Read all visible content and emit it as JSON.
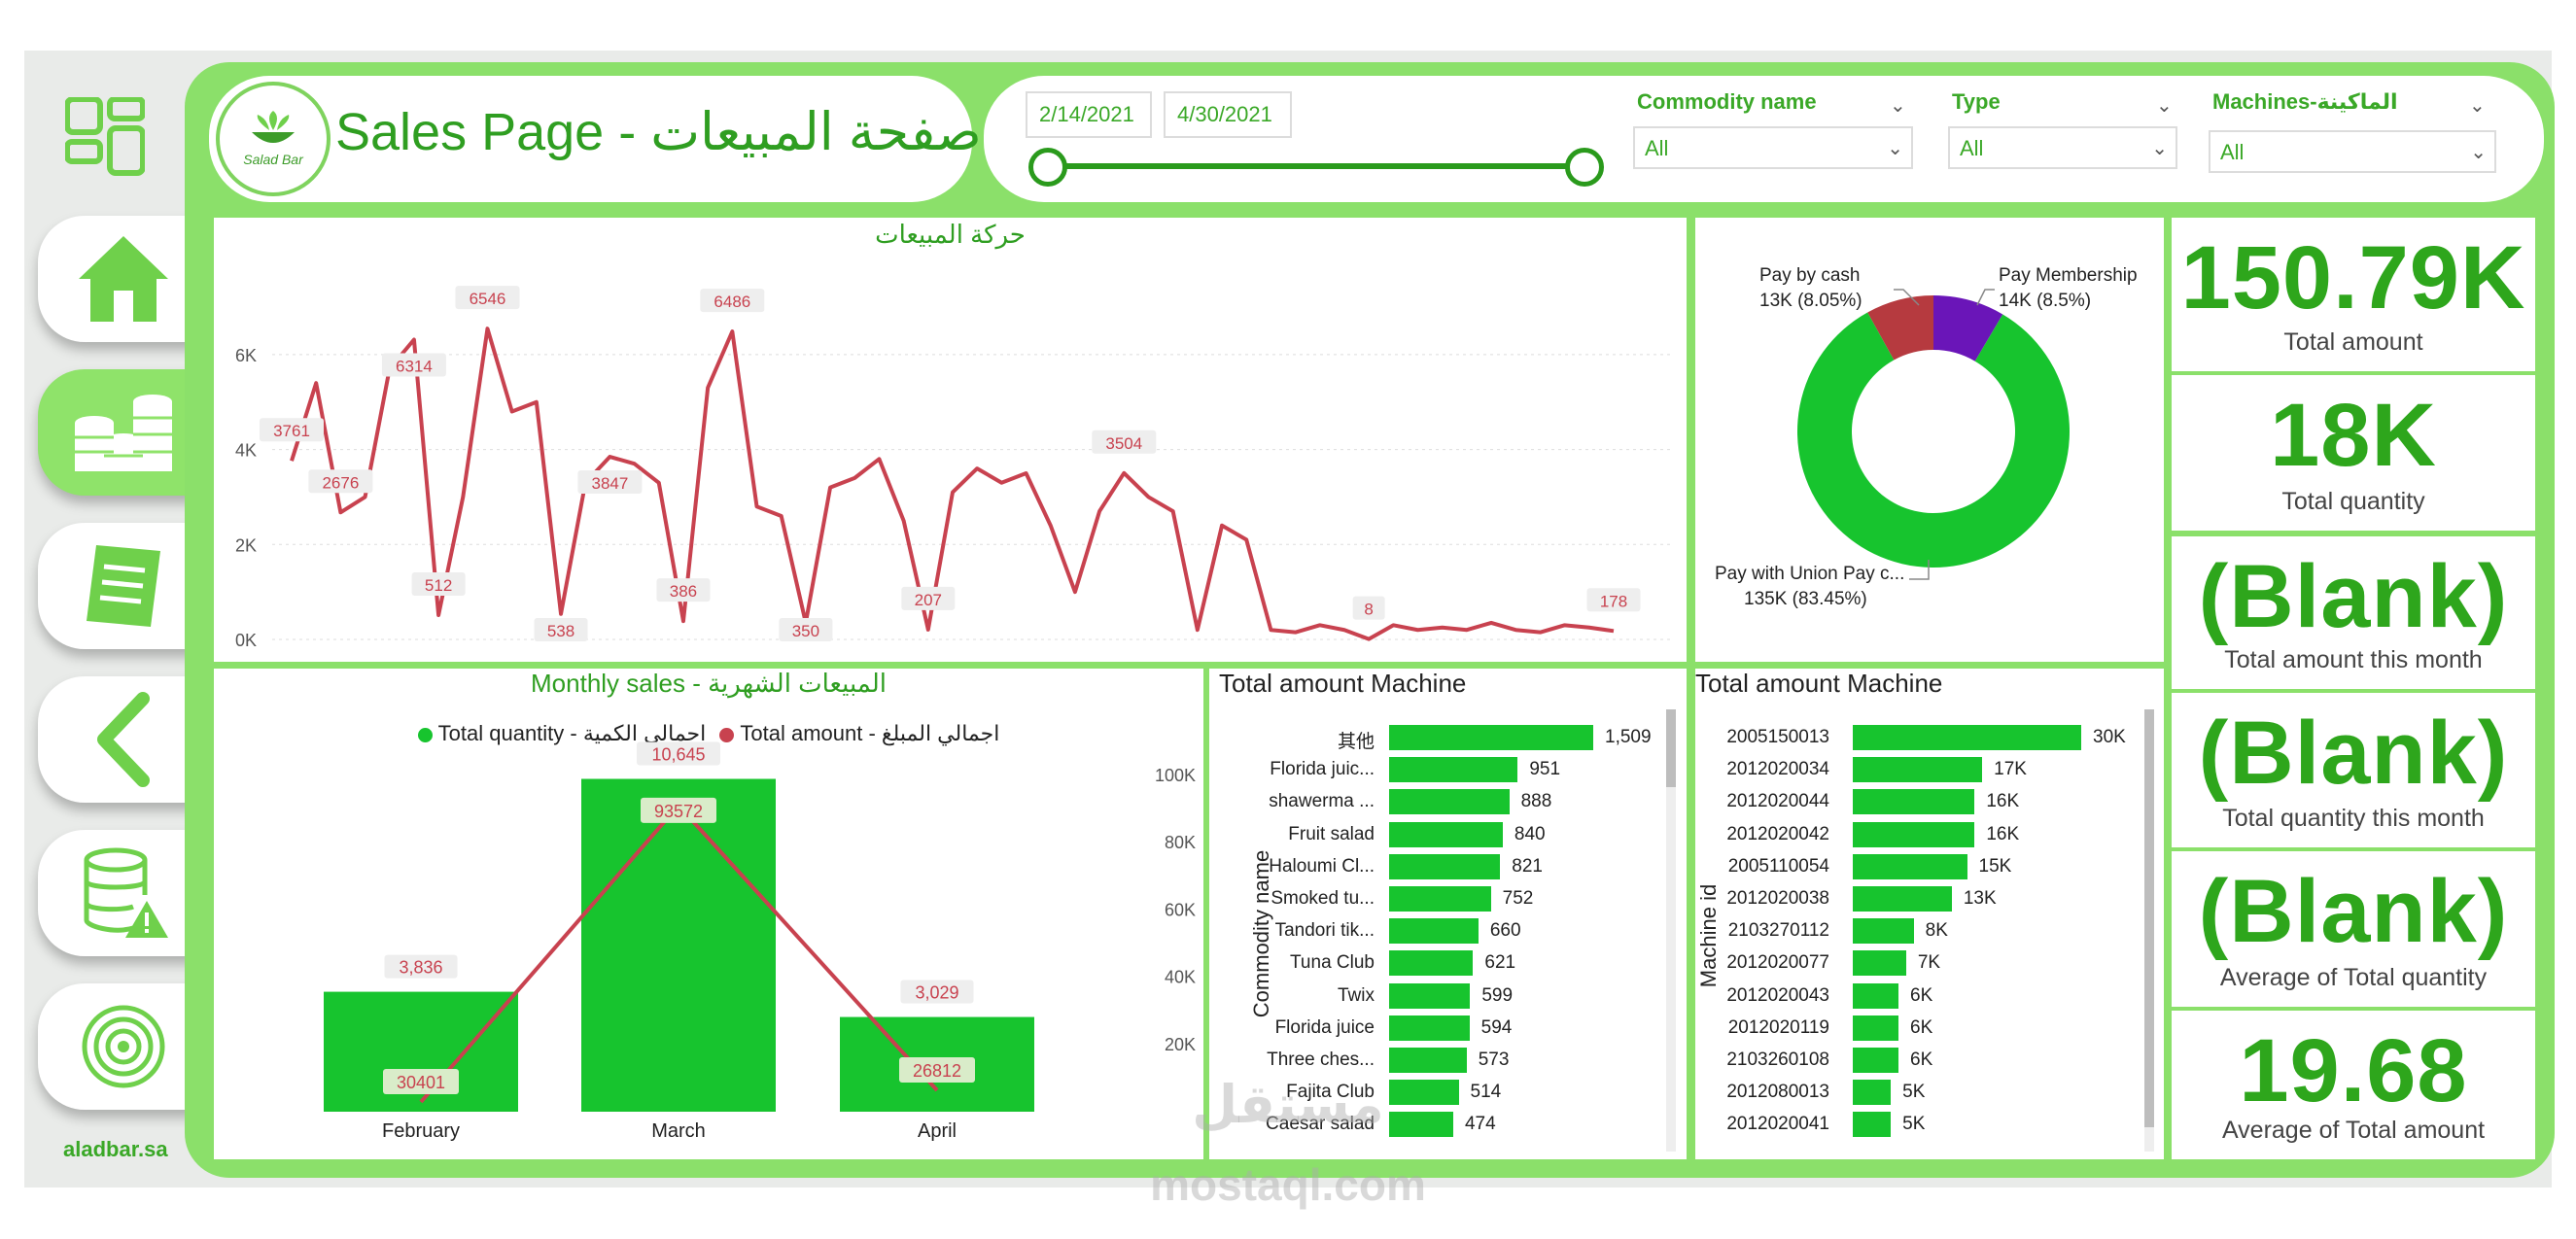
{
  "colors": {
    "accent": "#2ea61c",
    "panel_green": "#8be06a",
    "bar_green": "#17c42e",
    "line_red": "#c8424f",
    "pie_red": "#b63a3f",
    "pie_purple": "#6a15b8"
  },
  "sidebar": {
    "items": [
      {
        "name": "dashboard-grid-icon"
      },
      {
        "name": "home-icon"
      },
      {
        "name": "coins-stack-icon"
      },
      {
        "name": "invoice-icon"
      },
      {
        "name": "back-arrow-icon"
      },
      {
        "name": "database-warning-icon"
      },
      {
        "name": "target-icon"
      }
    ],
    "brand": "aladbar.sa"
  },
  "header": {
    "logo_text": "Salad Bar",
    "title": "Sales Page - صفحة المبيعات"
  },
  "filters": {
    "date_start": "2/14/2021",
    "date_end": "4/30/2021",
    "commodity": {
      "label": "Commodity name",
      "value": "All"
    },
    "type": {
      "label": "Type",
      "value": "All"
    },
    "machines": {
      "label": "Machines-الماكينة",
      "value": "All"
    }
  },
  "sales_movement": {
    "title": "حركة المبيعات",
    "chart_data": {
      "type": "line",
      "yticks": [
        "6K",
        "4K",
        "2K",
        "0K"
      ],
      "ylim": [
        0,
        7000
      ],
      "values": [
        3761,
        5400,
        2676,
        3000,
        5700,
        6314,
        512,
        3000,
        6546,
        4800,
        5000,
        538,
        3300,
        3847,
        3700,
        3300,
        386,
        5300,
        6486,
        2800,
        2600,
        350,
        3200,
        3400,
        3800,
        2500,
        207,
        3100,
        3600,
        3300,
        3500,
        2400,
        1000,
        2700,
        3504,
        3000,
        2700,
        200,
        2400,
        2100,
        200,
        150,
        300,
        200,
        8,
        300,
        200,
        250,
        200,
        350,
        200,
        150,
        300,
        250,
        178
      ],
      "data_labels": [
        {
          "i": 0,
          "v": "3761"
        },
        {
          "i": 2,
          "v": "2676"
        },
        {
          "i": 5,
          "v": "6314"
        },
        {
          "i": 6,
          "v": "512"
        },
        {
          "i": 8,
          "v": "6546"
        },
        {
          "i": 11,
          "v": "538"
        },
        {
          "i": 13,
          "v": "3847"
        },
        {
          "i": 16,
          "v": "386"
        },
        {
          "i": 18,
          "v": "6486"
        },
        {
          "i": 21,
          "v": "350"
        },
        {
          "i": 26,
          "v": "207"
        },
        {
          "i": 34,
          "v": "3504"
        },
        {
          "i": 44,
          "v": "8"
        },
        {
          "i": 54,
          "v": "178"
        }
      ]
    }
  },
  "payment": {
    "chart_data": {
      "type": "pie",
      "slices": [
        {
          "label": "Pay with Union Pay c...",
          "value_text": "135K (83.45%)",
          "value": 83.45,
          "color": "#17c42e"
        },
        {
          "label": "Pay by cash",
          "value_text": "13K (8.05%)",
          "value": 8.05,
          "color": "#b63a3f"
        },
        {
          "label": "Pay Membership",
          "value_text": "14K (8.5%)",
          "value": 8.5,
          "color": "#6a15b8"
        }
      ]
    }
  },
  "kpis": [
    {
      "value": "150.79K",
      "label": "Total amount"
    },
    {
      "value": "18K",
      "label": "Total quantity"
    },
    {
      "value": "(Blank)",
      "label": "Total amount this month"
    },
    {
      "value": "(Blank)",
      "label": "Total quantity this month"
    },
    {
      "value": "(Blank)",
      "label": "Average of Total quantity"
    },
    {
      "value": "19.68",
      "label": "Average of Total amount"
    }
  ],
  "monthly": {
    "title": "Monthly sales - المبيعات الشهرية",
    "legend": [
      "Total quantity - اجمالي الكمية",
      "Total amount - اجمالي المبلغ"
    ],
    "chart_data": {
      "type": "bar",
      "categories": [
        "February",
        "March",
        "April"
      ],
      "series": [
        {
          "name": "Total quantity - اجمالي الكمية",
          "values": [
            3836,
            10645,
            3029
          ],
          "labels": [
            "3,836",
            "10,645",
            "3,029"
          ]
        },
        {
          "name": "Total amount - اجمالي المبلغ",
          "values": [
            30401,
            93572,
            26812
          ],
          "labels": [
            "30401",
            "93572",
            "26812"
          ]
        }
      ],
      "secondary_yticks": [
        "100K",
        "80K",
        "60K",
        "40K",
        "20K"
      ]
    }
  },
  "commodity_chart": {
    "title": "Total amount Machine",
    "axis": "Commodity name",
    "chart_data": {
      "type": "bar",
      "categories": [
        "其他",
        "Florida juic...",
        "shawerma ...",
        "Fruit salad",
        "Haloumi Cl...",
        "Smoked tu...",
        "Tandori tik...",
        "Tuna Club",
        "Twix",
        "Florida juice",
        "Three ches...",
        "Fajita Club",
        "Caesar salad"
      ],
      "values": [
        1509,
        951,
        888,
        840,
        821,
        752,
        660,
        621,
        599,
        594,
        573,
        514,
        474
      ],
      "labels": [
        "1,509",
        "951",
        "888",
        "840",
        "821",
        "752",
        "660",
        "621",
        "599",
        "594",
        "573",
        "514",
        "474"
      ]
    }
  },
  "machine_chart": {
    "title": "Total amount Machine",
    "axis": "Machine id",
    "chart_data": {
      "type": "bar",
      "categories": [
        "2005150013",
        "2012020034",
        "2012020044",
        "2012020042",
        "2005110054",
        "2012020038",
        "2103270112",
        "2012020077",
        "2012020043",
        "2012020119",
        "2103260108",
        "2012080013",
        "2012020041"
      ],
      "values": [
        30000,
        17000,
        16000,
        16000,
        15000,
        13000,
        8000,
        7000,
        6000,
        6000,
        6000,
        5000,
        5000
      ],
      "labels": [
        "30K",
        "17K",
        "16K",
        "16K",
        "15K",
        "13K",
        "8K",
        "7K",
        "6K",
        "6K",
        "6K",
        "5K",
        "5K"
      ]
    }
  },
  "watermark": {
    "line1": "مستقل",
    "line2": "mostaql.com"
  }
}
